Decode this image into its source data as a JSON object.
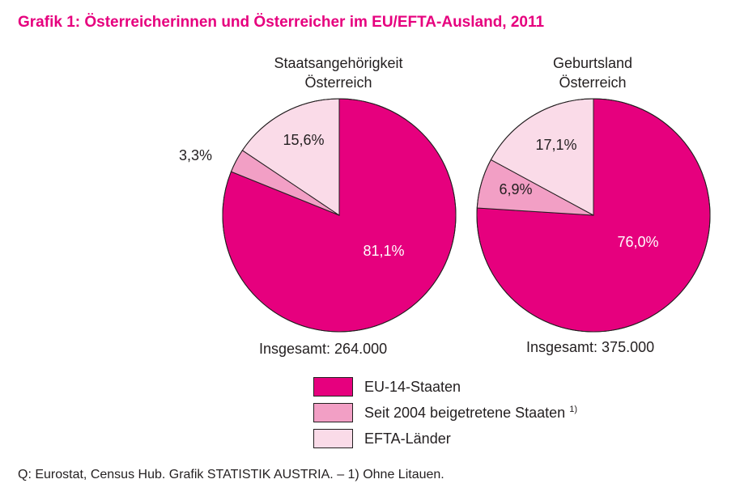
{
  "title": "Grafik 1: Österreicherinnen und Österreicher im EU/EFTA-Ausland, 2011",
  "colors": {
    "eu14": "#e6007e",
    "seit2004": "#f29fc5",
    "efta": "#fadbe8",
    "title": "#e6007e"
  },
  "chart_data": [
    {
      "type": "pie",
      "title_line1": "Staatsangehörigkeit",
      "title_line2": "Österreich",
      "total_label": "Insgesamt: 264.000",
      "slices": [
        {
          "name": "EU-14-Staaten",
          "value": 81.1,
          "label": "81,1%"
        },
        {
          "name": "Seit 2004 beigetretene Staaten",
          "value": 3.3,
          "label": "3,3%"
        },
        {
          "name": "EFTA-Länder",
          "value": 15.6,
          "label": "15,6%"
        }
      ]
    },
    {
      "type": "pie",
      "title_line1": "Geburtsland",
      "title_line2": "Österreich",
      "total_label": "Insgesamt: 375.000",
      "slices": [
        {
          "name": "EU-14-Staaten",
          "value": 76.0,
          "label": "76,0%"
        },
        {
          "name": "Seit 2004 beigetretene Staaten",
          "value": 6.9,
          "label": "6,9%"
        },
        {
          "name": "EFTA-Länder",
          "value": 17.1,
          "label": "17,1%"
        }
      ]
    }
  ],
  "legend": [
    {
      "label": "EU-14-Staaten",
      "sup": ""
    },
    {
      "label": "Seit 2004 beigetretene Staaten ",
      "sup": "1)"
    },
    {
      "label": "EFTA-Länder",
      "sup": ""
    }
  ],
  "source": "Q: Eurostat, Census Hub. Grafik STATISTIK AUSTRIA. – 1) Ohne Litauen."
}
